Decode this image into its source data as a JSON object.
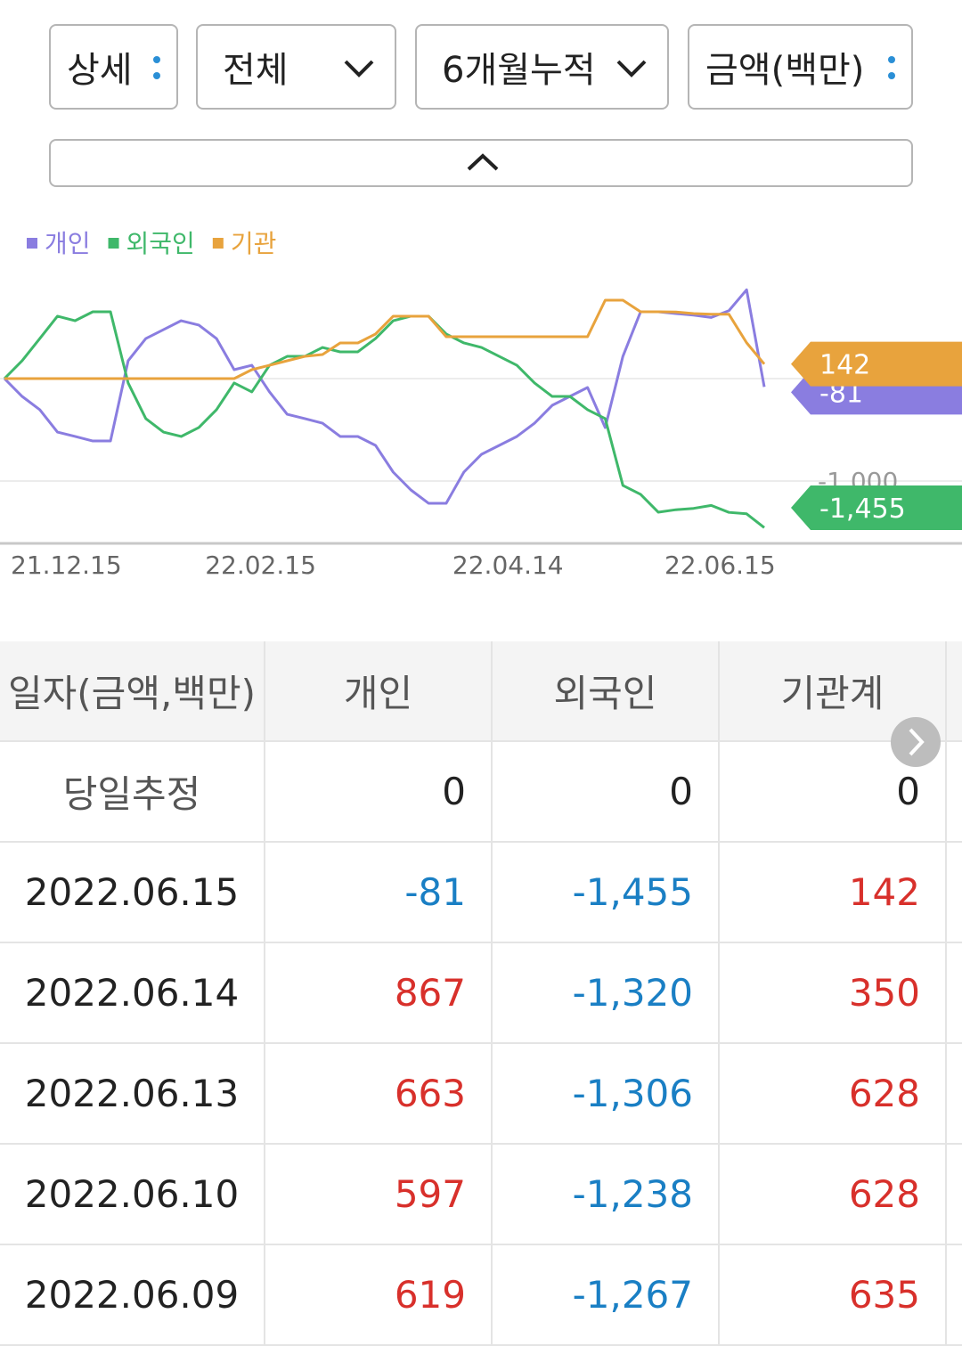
{
  "controls": {
    "detail": "상세",
    "scope": "전체",
    "period": "6개월누적",
    "unit": "금액(백만)"
  },
  "chart_data": {
    "type": "line",
    "categories": [
      "21.12.15",
      null,
      null,
      null,
      null,
      null,
      null,
      null,
      null,
      null,
      null,
      "22.02.15",
      null,
      null,
      null,
      null,
      null,
      null,
      null,
      null,
      null,
      null,
      null,
      null,
      null,
      "22.04.14",
      null,
      null,
      null,
      null,
      null,
      null,
      null,
      null,
      null,
      null,
      null,
      "22.06.15",
      null,
      null,
      null,
      null,
      null,
      null
    ],
    "series": [
      {
        "name": "개인",
        "color": "#8a7de0",
        "values": [
          0,
          -174,
          -304,
          -522,
          -565,
          -609,
          -609,
          174,
          391,
          478,
          565,
          522,
          391,
          87,
          130,
          -130,
          -348,
          -391,
          -435,
          -565,
          -565,
          -652,
          -913,
          -1087,
          -1217,
          -1217,
          -913,
          -739,
          -652,
          -565,
          -435,
          -261,
          -174,
          -87,
          -478,
          217,
          652,
          652,
          635,
          619,
          597,
          663,
          867,
          -81
        ],
        "value_labels": [
          null,
          null,
          null,
          null,
          null,
          null,
          null,
          null,
          null,
          null,
          null,
          null,
          null,
          null,
          null,
          null,
          null,
          null,
          null,
          null,
          null,
          null,
          null,
          null,
          null,
          null,
          null,
          null,
          null,
          null,
          null,
          null,
          null,
          null,
          null,
          null,
          null,
          null,
          null,
          null,
          null,
          null,
          null,
          "-81"
        ]
      },
      {
        "name": "외국인",
        "color": "#3fb86a",
        "values": [
          0,
          174,
          391,
          609,
          565,
          652,
          652,
          -43,
          -391,
          -522,
          -565,
          -478,
          -304,
          -43,
          -130,
          130,
          217,
          217,
          304,
          261,
          261,
          391,
          565,
          609,
          609,
          435,
          348,
          304,
          217,
          130,
          -43,
          -174,
          -174,
          -304,
          -391,
          -1043,
          -1130,
          -1304,
          -1280,
          -1267,
          -1238,
          -1306,
          -1320,
          -1455
        ],
        "value_labels": [
          null,
          null,
          null,
          null,
          null,
          null,
          null,
          null,
          null,
          null,
          null,
          null,
          null,
          null,
          null,
          null,
          null,
          null,
          null,
          null,
          null,
          null,
          null,
          null,
          null,
          null,
          null,
          null,
          null,
          null,
          null,
          null,
          null,
          null,
          null,
          null,
          null,
          null,
          null,
          null,
          null,
          null,
          null,
          "-1,455"
        ]
      },
      {
        "name": "기관",
        "color": "#e8a33d",
        "values": [
          0,
          0,
          0,
          0,
          0,
          0,
          0,
          0,
          0,
          0,
          0,
          0,
          0,
          0,
          87,
          130,
          174,
          217,
          235,
          348,
          348,
          435,
          609,
          609,
          609,
          409,
          409,
          409,
          409,
          409,
          409,
          409,
          409,
          409,
          765,
          765,
          652,
          652,
          650,
          635,
          628,
          628,
          350,
          142
        ],
        "value_labels": [
          null,
          null,
          null,
          null,
          null,
          null,
          null,
          null,
          null,
          null,
          null,
          null,
          null,
          null,
          null,
          null,
          null,
          null,
          null,
          null,
          null,
          null,
          null,
          null,
          null,
          null,
          null,
          null,
          null,
          null,
          null,
          null,
          null,
          null,
          null,
          null,
          null,
          null,
          null,
          null,
          null,
          null,
          null,
          "142"
        ]
      }
    ],
    "ylim": [
      -1600,
      1000
    ],
    "yticks": [
      0,
      {
        "value": -1000,
        "label": "-1,000"
      }
    ],
    "grid": true
  },
  "table": {
    "header": [
      "일자(금액,백만)",
      "개인",
      "외국인",
      "기관계"
    ],
    "rows": [
      [
        "당일추정",
        "0",
        "0",
        "0"
      ],
      [
        "2022.06.15",
        "-81",
        "-1,455",
        "142"
      ],
      [
        "2022.06.14",
        "867",
        "-1,320",
        "350"
      ],
      [
        "2022.06.13",
        "663",
        "-1,306",
        "628"
      ],
      [
        "2022.06.10",
        "597",
        "-1,238",
        "628"
      ],
      [
        "2022.06.09",
        "619",
        "-1,267",
        "635"
      ]
    ]
  }
}
